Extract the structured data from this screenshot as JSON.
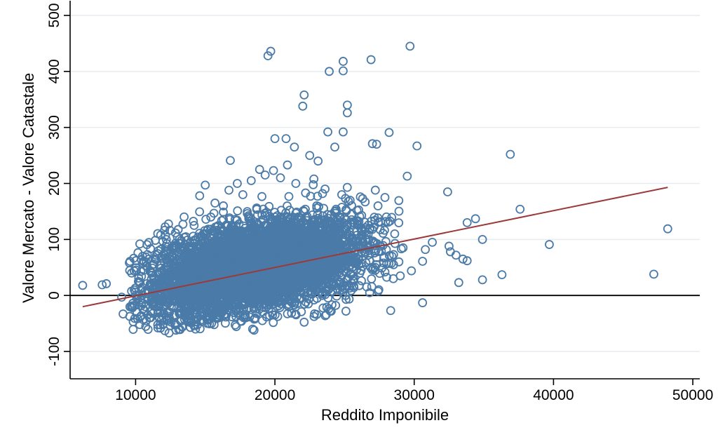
{
  "chart_data": {
    "type": "scatter",
    "title": "",
    "xlabel": "Reddito Imponibile",
    "ylabel": "Valore Mercato - Valore Catastale",
    "xlim": [
      5500,
      50500
    ],
    "ylim": [
      -130,
      515
    ],
    "xticks": [
      10000,
      20000,
      30000,
      40000,
      50000
    ],
    "xtick_labels": [
      "10000",
      "20000",
      "30000",
      "40000",
      "50000"
    ],
    "yticks": [
      -100,
      0,
      100,
      200,
      300,
      400,
      500
    ],
    "ytick_labels": [
      "-100",
      "0",
      "100",
      "200",
      "300",
      "400",
      "500"
    ],
    "grid": "horizontal",
    "legend": "none",
    "reference_line_y": 0,
    "fit_line": {
      "x": [
        6200,
        48200
      ],
      "y": [
        -20,
        193
      ]
    },
    "colors": {
      "marker": "#4a7aa8",
      "fit_line": "#9b3a3a",
      "grid": "#e6ecf0",
      "reference_line": "#000000"
    },
    "cloud_summary": "dense point cloud concentrated between x 10000-28000 and y -60 to 220 (individual values too dense to read)",
    "points": [
      [
        6200,
        18
      ],
      [
        7600,
        19
      ],
      [
        7900,
        21
      ],
      [
        9000,
        -3
      ],
      [
        9100,
        -33
      ],
      [
        9600,
        61
      ],
      [
        10500,
        70
      ],
      [
        11800,
        108
      ],
      [
        16800,
        241
      ],
      [
        19500,
        428
      ],
      [
        19700,
        436
      ],
      [
        20000,
        280
      ],
      [
        20800,
        280
      ],
      [
        22000,
        338
      ],
      [
        22100,
        358
      ],
      [
        23900,
        400
      ],
      [
        23800,
        292
      ],
      [
        24300,
        265
      ],
      [
        24900,
        418
      ],
      [
        24900,
        401
      ],
      [
        25200,
        340
      ],
      [
        25200,
        326
      ],
      [
        24900,
        292
      ],
      [
        26900,
        421
      ],
      [
        27000,
        271
      ],
      [
        27300,
        270
      ],
      [
        28200,
        291
      ],
      [
        29700,
        445
      ],
      [
        29500,
        213
      ],
      [
        30200,
        267
      ],
      [
        32400,
        185
      ],
      [
        31300,
        95
      ],
      [
        30600,
        -13
      ],
      [
        30800,
        82
      ],
      [
        30600,
        61
      ],
      [
        32500,
        88
      ],
      [
        32600,
        78
      ],
      [
        33000,
        72
      ],
      [
        33200,
        23
      ],
      [
        33500,
        65
      ],
      [
        33800,
        62
      ],
      [
        33800,
        130
      ],
      [
        34400,
        137
      ],
      [
        34900,
        100
      ],
      [
        34900,
        28
      ],
      [
        36300,
        37
      ],
      [
        36900,
        252
      ],
      [
        37600,
        154
      ],
      [
        39700,
        91
      ],
      [
        47200,
        38
      ],
      [
        48200,
        119
      ],
      [
        22500,
        250
      ],
      [
        23100,
        240
      ],
      [
        21400,
        265
      ],
      [
        24800,
        180
      ],
      [
        25400,
        170
      ],
      [
        26300,
        173
      ],
      [
        27400,
        160
      ],
      [
        27900,
        175
      ],
      [
        28600,
        110
      ],
      [
        28400,
        70
      ],
      [
        29200,
        85
      ],
      [
        29800,
        44
      ],
      [
        29000,
        35
      ],
      [
        26800,
        5
      ],
      [
        25100,
        -28
      ],
      [
        21900,
        -29
      ],
      [
        23000,
        -34
      ],
      [
        18400,
        -60
      ],
      [
        18500,
        -62
      ],
      [
        14300,
        -60
      ],
      [
        12100,
        -63
      ],
      [
        11600,
        -58
      ],
      [
        12400,
        -67
      ],
      [
        12900,
        -62
      ],
      [
        10300,
        -52
      ],
      [
        11000,
        -40
      ],
      [
        9700,
        -20
      ],
      [
        9900,
        10
      ],
      [
        10200,
        25
      ],
      [
        10600,
        45
      ],
      [
        11200,
        55
      ],
      [
        12200,
        30
      ],
      [
        13500,
        80
      ],
      [
        14200,
        125
      ],
      [
        14600,
        178
      ],
      [
        15000,
        197
      ],
      [
        15700,
        165
      ],
      [
        15400,
        140
      ],
      [
        16300,
        160
      ],
      [
        16700,
        188
      ],
      [
        17300,
        200
      ],
      [
        17700,
        180
      ],
      [
        18300,
        205
      ],
      [
        18900,
        225
      ],
      [
        19300,
        215
      ],
      [
        19900,
        223
      ],
      [
        20400,
        210
      ],
      [
        20900,
        233
      ],
      [
        21500,
        200
      ],
      [
        22200,
        183
      ],
      [
        22800,
        208
      ],
      [
        23600,
        190
      ],
      [
        24300,
        150
      ],
      [
        24700,
        140
      ],
      [
        25600,
        130
      ],
      [
        26200,
        120
      ],
      [
        26500,
        100
      ],
      [
        27100,
        95
      ],
      [
        27600,
        88
      ],
      [
        28000,
        82
      ],
      [
        28900,
        60
      ],
      [
        27800,
        58
      ],
      [
        26100,
        40
      ],
      [
        25500,
        22
      ],
      [
        24500,
        10
      ],
      [
        23400,
        0
      ],
      [
        22400,
        -15
      ],
      [
        21000,
        -20
      ],
      [
        19800,
        -30
      ],
      [
        19100,
        -45
      ],
      [
        17900,
        -40
      ],
      [
        16900,
        -38
      ],
      [
        15900,
        -35
      ],
      [
        15100,
        -30
      ],
      [
        14000,
        -25
      ],
      [
        13300,
        -32
      ],
      [
        12700,
        -20
      ],
      [
        11900,
        -10
      ],
      [
        11400,
        5
      ],
      [
        12300,
        12
      ],
      [
        13100,
        20
      ],
      [
        13900,
        35
      ],
      [
        14700,
        48
      ],
      [
        15500,
        58
      ],
      [
        16400,
        70
      ],
      [
        17200,
        84
      ],
      [
        18000,
        96
      ],
      [
        18800,
        108
      ],
      [
        19600,
        120
      ],
      [
        20500,
        132
      ],
      [
        21300,
        140
      ],
      [
        22100,
        150
      ],
      [
        23000,
        160
      ],
      [
        23800,
        138
      ],
      [
        24600,
        122
      ],
      [
        25300,
        105
      ],
      [
        26000,
        88
      ],
      [
        26700,
        72
      ],
      [
        27300,
        55
      ],
      [
        27900,
        42
      ],
      [
        28500,
        30
      ]
    ]
  }
}
